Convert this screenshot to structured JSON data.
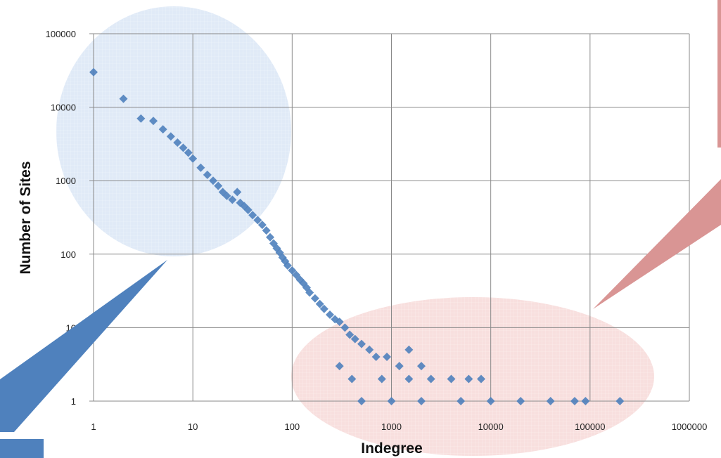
{
  "chart_data": {
    "type": "scatter",
    "title": "",
    "xlabel": "Indegree",
    "ylabel": "Number of Sites",
    "x_scale": "log",
    "y_scale": "log",
    "xlim": [
      1,
      1000000
    ],
    "ylim": [
      1,
      100000
    ],
    "grid": true,
    "x_ticks": [
      "1",
      "10",
      "100",
      "1000",
      "10000",
      "100000",
      "1000000"
    ],
    "y_ticks": [
      "1",
      "10",
      "100",
      "1000",
      "10000",
      "100000"
    ],
    "marker": "diamond",
    "marker_color": "#4f81bd",
    "points": [
      [
        1,
        30000
      ],
      [
        2,
        13000
      ],
      [
        3,
        7000
      ],
      [
        4,
        6500
      ],
      [
        5,
        5000
      ],
      [
        6,
        4000
      ],
      [
        7,
        3300
      ],
      [
        8,
        2800
      ],
      [
        9,
        2400
      ],
      [
        10,
        2000
      ],
      [
        12,
        1500
      ],
      [
        14,
        1200
      ],
      [
        16,
        1000
      ],
      [
        18,
        850
      ],
      [
        20,
        700
      ],
      [
        22,
        620
      ],
      [
        25,
        550
      ],
      [
        28,
        700
      ],
      [
        30,
        500
      ],
      [
        33,
        450
      ],
      [
        36,
        400
      ],
      [
        40,
        340
      ],
      [
        45,
        290
      ],
      [
        50,
        250
      ],
      [
        55,
        210
      ],
      [
        60,
        170
      ],
      [
        65,
        140
      ],
      [
        70,
        120
      ],
      [
        75,
        105
      ],
      [
        80,
        90
      ],
      [
        85,
        80
      ],
      [
        90,
        70
      ],
      [
        100,
        60
      ],
      [
        110,
        52
      ],
      [
        120,
        45
      ],
      [
        130,
        40
      ],
      [
        140,
        35
      ],
      [
        150,
        30
      ],
      [
        170,
        25
      ],
      [
        190,
        21
      ],
      [
        210,
        18
      ],
      [
        240,
        15
      ],
      [
        270,
        13
      ],
      [
        300,
        12
      ],
      [
        340,
        10
      ],
      [
        380,
        8
      ],
      [
        430,
        7
      ],
      [
        500,
        6
      ],
      [
        600,
        5
      ],
      [
        700,
        4
      ],
      [
        900,
        4
      ],
      [
        1500,
        5
      ],
      [
        1200,
        3
      ],
      [
        2000,
        3
      ],
      [
        300,
        3
      ],
      [
        400,
        2
      ],
      [
        800,
        2
      ],
      [
        1500,
        2
      ],
      [
        2500,
        2
      ],
      [
        4000,
        2
      ],
      [
        6000,
        2
      ],
      [
        8000,
        2
      ],
      [
        500,
        1
      ],
      [
        1000,
        1
      ],
      [
        2000,
        1
      ],
      [
        5000,
        1
      ],
      [
        10000,
        1
      ],
      [
        20000,
        1
      ],
      [
        40000,
        1
      ],
      [
        70000,
        1
      ],
      [
        90000,
        1
      ],
      [
        200000,
        1
      ]
    ],
    "annotations": [
      {
        "shape": "ellipse",
        "color": "#c6d9f1",
        "region": "upper-left"
      },
      {
        "shape": "ellipse",
        "color": "#f2c4c2",
        "region": "lower-right"
      }
    ]
  }
}
